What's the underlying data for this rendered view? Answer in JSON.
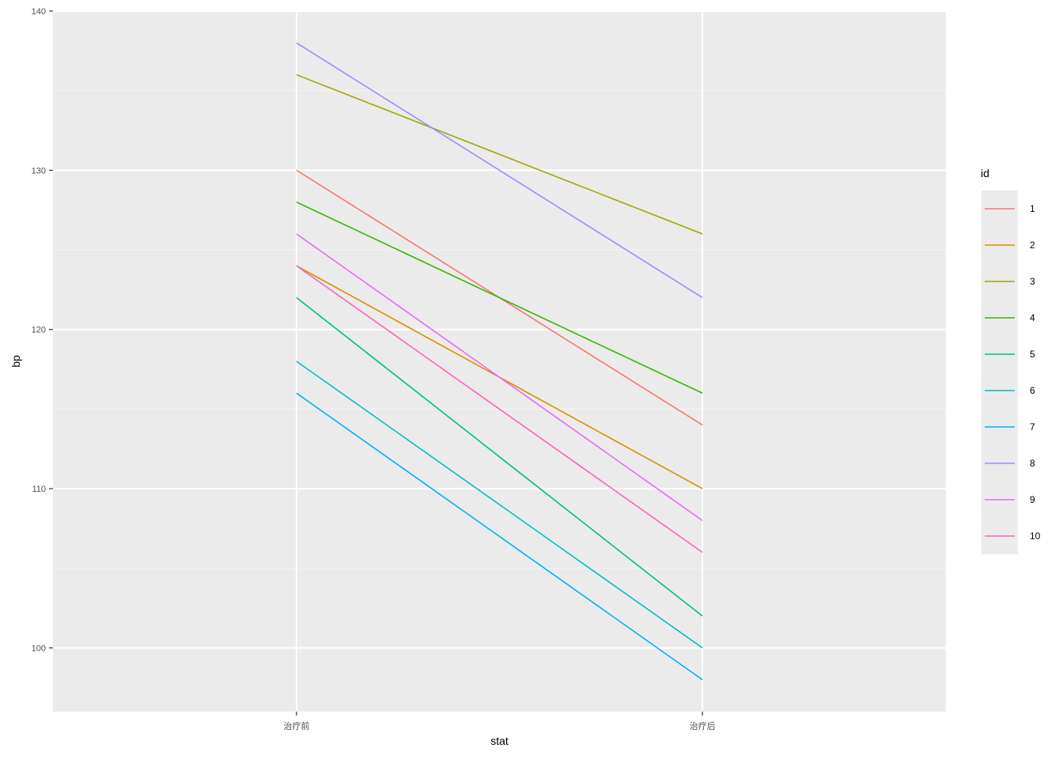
{
  "chart_data": {
    "type": "line",
    "title": "",
    "xlabel": "stat",
    "ylabel": "bp",
    "categories": [
      "治疗前",
      "治疗后"
    ],
    "yticks": [
      100,
      110,
      120,
      130,
      140
    ],
    "ylim": [
      96,
      140
    ],
    "grid": true,
    "legend": {
      "title": "id",
      "placement": "right"
    },
    "colors": {
      "panel_bg": "#EBEBEB",
      "grid_major": "#FFFFFF",
      "grid_minor": "#F5F5F5",
      "tick_text": "#4D4D4D"
    },
    "series": [
      {
        "name": "1",
        "color": "#F8766D",
        "values": [
          130,
          114
        ]
      },
      {
        "name": "2",
        "color": "#D89000",
        "values": [
          124,
          110
        ]
      },
      {
        "name": "3",
        "color": "#A3A500",
        "values": [
          136,
          126
        ]
      },
      {
        "name": "4",
        "color": "#39B600",
        "values": [
          128,
          116
        ]
      },
      {
        "name": "5",
        "color": "#00BF7D",
        "values": [
          122,
          102
        ]
      },
      {
        "name": "6",
        "color": "#00BFC4",
        "values": [
          118,
          100
        ]
      },
      {
        "name": "7",
        "color": "#00B0F6",
        "values": [
          116,
          98
        ]
      },
      {
        "name": "8",
        "color": "#9590FF",
        "values": [
          138,
          122
        ]
      },
      {
        "name": "9",
        "color": "#E76BF3",
        "values": [
          126,
          108
        ]
      },
      {
        "name": "10",
        "color": "#FF62BC",
        "values": [
          124,
          106
        ]
      }
    ]
  }
}
